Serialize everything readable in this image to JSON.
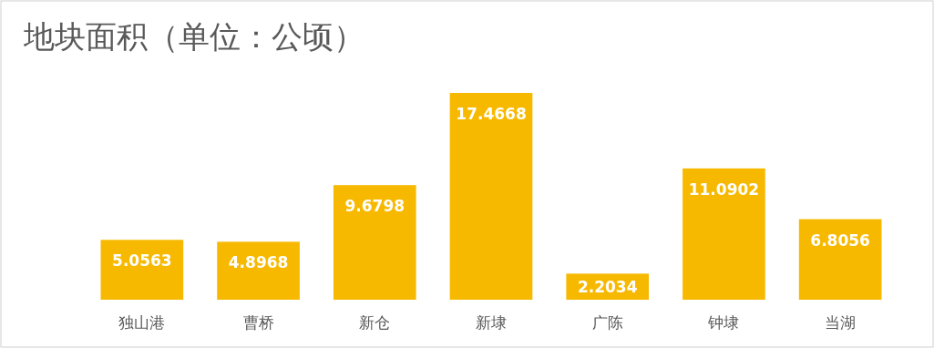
{
  "chart_data": {
    "type": "bar",
    "title": "地块面积（单位：公顷）",
    "categories": [
      "独山港",
      "曹桥",
      "新仓",
      "新埭",
      "广陈",
      "钟埭",
      "当湖"
    ],
    "values": [
      5.0563,
      4.8968,
      9.6798,
      17.4668,
      2.2034,
      11.0902,
      6.8056
    ],
    "color": "#f7b900",
    "data_labels": true
  }
}
